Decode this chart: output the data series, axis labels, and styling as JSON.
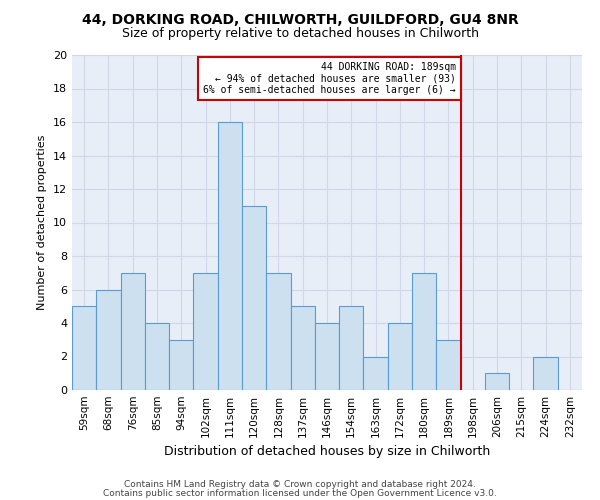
{
  "title1": "44, DORKING ROAD, CHILWORTH, GUILDFORD, GU4 8NR",
  "title2": "Size of property relative to detached houses in Chilworth",
  "xlabel": "Distribution of detached houses by size in Chilworth",
  "ylabel": "Number of detached properties",
  "categories": [
    "59sqm",
    "68sqm",
    "76sqm",
    "85sqm",
    "94sqm",
    "102sqm",
    "111sqm",
    "120sqm",
    "128sqm",
    "137sqm",
    "146sqm",
    "154sqm",
    "163sqm",
    "172sqm",
    "180sqm",
    "189sqm",
    "198sqm",
    "206sqm",
    "215sqm",
    "224sqm",
    "232sqm"
  ],
  "values": [
    5,
    6,
    7,
    4,
    3,
    7,
    16,
    11,
    7,
    5,
    4,
    5,
    2,
    4,
    7,
    3,
    0,
    1,
    0,
    2,
    0
  ],
  "bar_color": "#cce0f0",
  "bar_edge_color": "#5b9bd5",
  "marker_line_index": 15,
  "marker_label": "44 DORKING ROAD: 189sqm",
  "annotation_line1": "← 94% of detached houses are smaller (93)",
  "annotation_line2": "6% of semi-detached houses are larger (6) →",
  "annotation_box_color": "#cc0000",
  "grid_color": "#d0d8e8",
  "background_color": "#e8eef8",
  "ylim": [
    0,
    20
  ],
  "yticks": [
    0,
    2,
    4,
    6,
    8,
    10,
    12,
    14,
    16,
    18,
    20
  ],
  "footnote1": "Contains HM Land Registry data © Crown copyright and database right 2024.",
  "footnote2": "Contains public sector information licensed under the Open Government Licence v3.0."
}
